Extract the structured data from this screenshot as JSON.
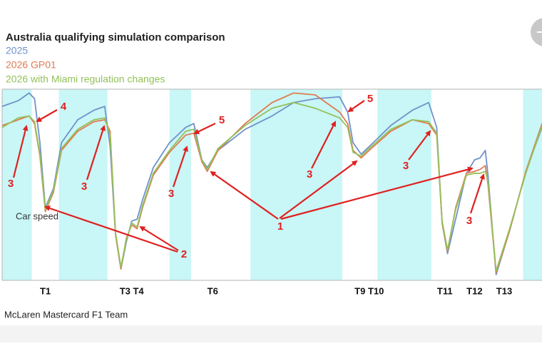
{
  "chart_data": {
    "type": "line",
    "title": "Australia qualifying simulation comparison",
    "trace_label": "Car speed",
    "x": [
      0,
      3,
      5,
      6,
      7,
      8,
      9.5,
      11,
      14,
      17,
      19,
      20,
      21,
      22,
      23,
      24,
      25,
      26,
      28,
      31,
      34,
      35.5,
      37,
      38,
      40,
      45,
      50,
      54,
      58,
      62.5,
      64,
      65,
      66.5,
      68,
      72,
      76,
      79,
      80.5,
      81.5,
      82.5,
      84,
      86,
      87.5,
      88.5,
      89.5,
      90,
      91.5,
      94,
      97,
      100
    ],
    "xlim": [
      0,
      100
    ],
    "ylim": [
      0,
      100
    ],
    "series": [
      {
        "name": "2025",
        "color": "#6f92cc",
        "values": [
          91,
          94,
          98,
          95,
          72,
          38,
          48,
          72,
          84,
          89,
          91,
          70,
          24,
          6,
          20,
          31,
          32,
          42,
          59,
          72,
          80,
          82,
          63,
          59,
          68,
          79,
          86,
          93,
          95,
          96,
          88,
          72,
          66,
          70,
          81,
          89,
          93,
          80,
          30,
          14,
          32,
          56,
          63,
          64,
          68,
          55,
          3,
          26,
          57,
          80
        ]
      },
      {
        "name": "2026 GP01",
        "color": "#e07b52",
        "values": [
          81,
          84,
          86,
          82,
          65,
          36,
          46,
          68,
          78,
          83,
          84,
          78,
          24,
          6,
          22,
          29,
          27,
          38,
          55,
          67,
          76,
          77,
          62,
          57,
          68,
          82,
          93,
          98,
          97,
          88,
          82,
          68,
          64,
          68,
          78,
          84,
          82,
          76,
          30,
          15,
          38,
          56,
          57,
          58,
          60,
          50,
          4,
          26,
          57,
          82
        ]
      },
      {
        "name": "2026 with Miami regulation changes",
        "color": "#93c15a",
        "values": [
          80,
          85,
          86,
          83,
          66,
          37,
          47,
          69,
          79,
          84,
          85,
          76,
          25,
          7,
          21,
          30,
          28,
          39,
          56,
          68,
          78,
          79,
          63,
          58,
          69,
          81,
          90,
          93,
          90,
          85,
          80,
          67,
          65,
          69,
          79,
          84,
          83,
          77,
          31,
          16,
          37,
          55,
          56,
          56,
          57,
          52,
          5,
          27,
          56,
          81
        ]
      }
    ],
    "shaded_x": [
      [
        0,
        5.5
      ],
      [
        10.5,
        19.5
      ],
      [
        31,
        35
      ],
      [
        46,
        63
      ],
      [
        69.5,
        79.5
      ],
      [
        96.5,
        100
      ]
    ],
    "shade_color": "#c9f6f6",
    "corners": [
      {
        "label": "T1",
        "x": 8
      },
      {
        "label": "T3 T4",
        "x": 24
      },
      {
        "label": "T6",
        "x": 39
      },
      {
        "label": "T9 T10",
        "x": 68
      },
      {
        "label": "T11",
        "x": 82
      },
      {
        "label": "T12",
        "x": 87.5
      },
      {
        "label": "T13",
        "x": 93
      }
    ],
    "annotations": [
      "4",
      "3",
      "3",
      "3",
      "5",
      "5",
      "3",
      "3",
      "1",
      "2",
      "3"
    ]
  },
  "caption": "McLaren Mastercard F1 Team"
}
